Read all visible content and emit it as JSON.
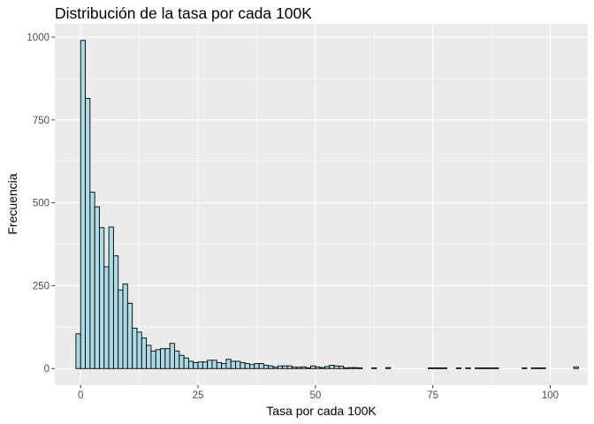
{
  "chart_data": {
    "type": "bar",
    "title": "Distribución de la tasa por cada 100K",
    "xlabel": "Tasa por cada 100K",
    "ylabel": "Frecuencia",
    "xlim": [
      -5.5,
      108
    ],
    "ylim": [
      -50,
      1040
    ],
    "xticks": [
      0,
      25,
      50,
      75,
      100
    ],
    "xtick_labels": [
      "0",
      "25",
      "50",
      "75",
      "100"
    ],
    "yticks": [
      0,
      250,
      500,
      750,
      1000
    ],
    "ytick_labels": [
      "0",
      "250",
      "500",
      "750",
      "1000"
    ],
    "grid": true,
    "bin_width": 1,
    "bin_start": -1,
    "fill_color": "#add8e6",
    "outline_color": "#000000",
    "panel_background": "#ebebeb",
    "grid_color": "#ffffff",
    "values": [
      105,
      990,
      815,
      532,
      488,
      425,
      307,
      427,
      340,
      237,
      255,
      197,
      122,
      110,
      92,
      70,
      53,
      57,
      60,
      60,
      76,
      53,
      40,
      32,
      22,
      18,
      20,
      20,
      25,
      25,
      18,
      15,
      28,
      22,
      22,
      18,
      15,
      12,
      15,
      15,
      10,
      8,
      4,
      8,
      8,
      8,
      4,
      4,
      5,
      2,
      8,
      5,
      3,
      6,
      10,
      8,
      7,
      2,
      3,
      3,
      2,
      0,
      0,
      2,
      0,
      0,
      3,
      0,
      0,
      0,
      0,
      0,
      0,
      0,
      0,
      2,
      2,
      2,
      2,
      0,
      0,
      2,
      0,
      2,
      0,
      2,
      2,
      2,
      2,
      2,
      0,
      0,
      0,
      0,
      0,
      2,
      0,
      2,
      2,
      2,
      0,
      0,
      0,
      0,
      0,
      0,
      5
    ]
  }
}
